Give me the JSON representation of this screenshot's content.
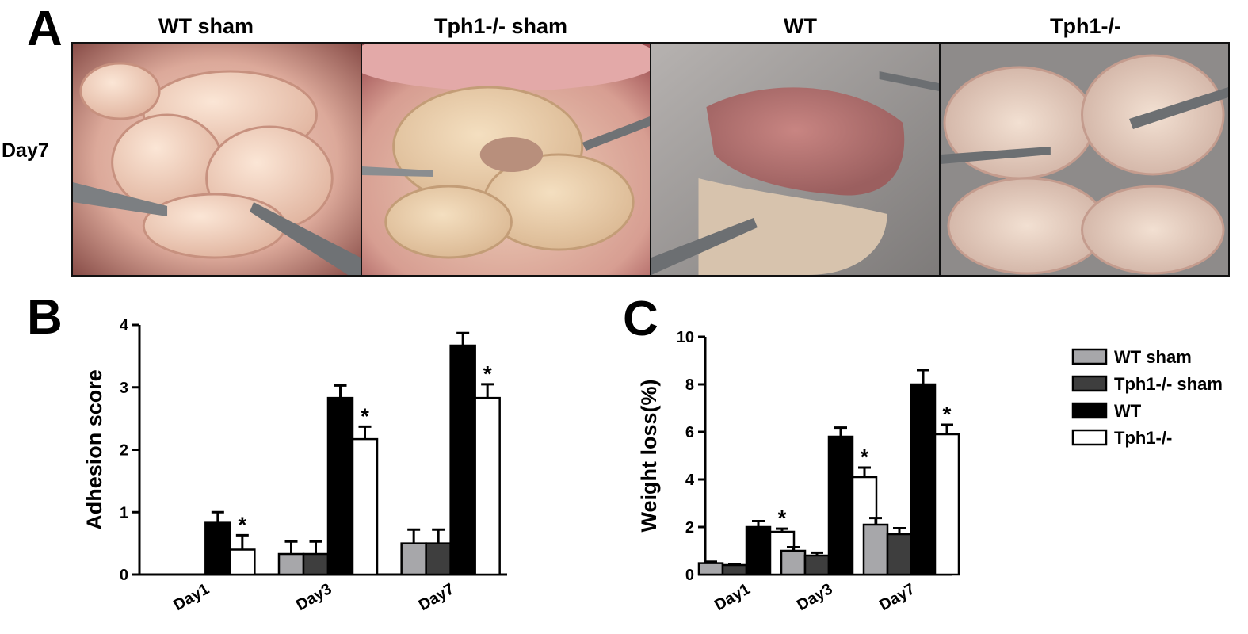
{
  "panel_letters": {
    "a": "A",
    "b": "B",
    "c": "C"
  },
  "photos": {
    "row_label": "Day7",
    "titles": [
      "WT sham",
      "Tph1-/- sham",
      "WT",
      "Tph1-/-"
    ]
  },
  "colors": {
    "WT sham": "#a7a7aa",
    "Tph1-/- sham": "#3e3e3e",
    "WT": "#000000",
    "Tph1-/-": "#ffffff"
  },
  "chart_data": [
    {
      "id": "B",
      "type": "bar",
      "ylabel": "Adhesion score",
      "ylim": [
        0,
        4
      ],
      "yticks": [
        "0",
        "1",
        "2",
        "3",
        "4"
      ],
      "categories": [
        "Day1",
        "Day3",
        "Day7"
      ],
      "series": [
        {
          "name": "WT sham",
          "values": [
            0,
            0.33,
            0.5
          ],
          "errors": [
            0,
            0.2,
            0.22
          ]
        },
        {
          "name": "Tph1-/- sham",
          "values": [
            0,
            0.33,
            0.5
          ],
          "errors": [
            0,
            0.2,
            0.22
          ]
        },
        {
          "name": "WT",
          "values": [
            0.83,
            2.83,
            3.67
          ],
          "errors": [
            0.17,
            0.2,
            0.2
          ]
        },
        {
          "name": "Tph1-/-",
          "values": [
            0.4,
            2.17,
            2.83
          ],
          "errors": [
            0.23,
            0.2,
            0.22
          ]
        }
      ],
      "significance": {
        "series": "Tph1-/-",
        "mark": "*"
      }
    },
    {
      "id": "C",
      "type": "bar",
      "ylabel": "Weight loss(%)",
      "ylim": [
        0,
        10
      ],
      "yticks": [
        "0",
        "2",
        "4",
        "6",
        "8",
        "10"
      ],
      "categories": [
        "Day1",
        "Day3",
        "Day7"
      ],
      "legend_position": "top-right",
      "series": [
        {
          "name": "WT sham",
          "values": [
            0.48,
            1.0,
            2.1
          ],
          "errors": [
            0.06,
            0.15,
            0.28
          ]
        },
        {
          "name": "Tph1-/- sham",
          "values": [
            0.4,
            0.8,
            1.7
          ],
          "errors": [
            0.05,
            0.12,
            0.25
          ]
        },
        {
          "name": "WT",
          "values": [
            2.0,
            5.8,
            8.0
          ],
          "errors": [
            0.25,
            0.38,
            0.6
          ]
        },
        {
          "name": "Tph1-/-",
          "values": [
            1.8,
            4.1,
            5.9
          ],
          "errors": [
            0.13,
            0.4,
            0.4
          ]
        }
      ],
      "significance": {
        "series": "Tph1-/-",
        "mark": "*"
      }
    }
  ]
}
